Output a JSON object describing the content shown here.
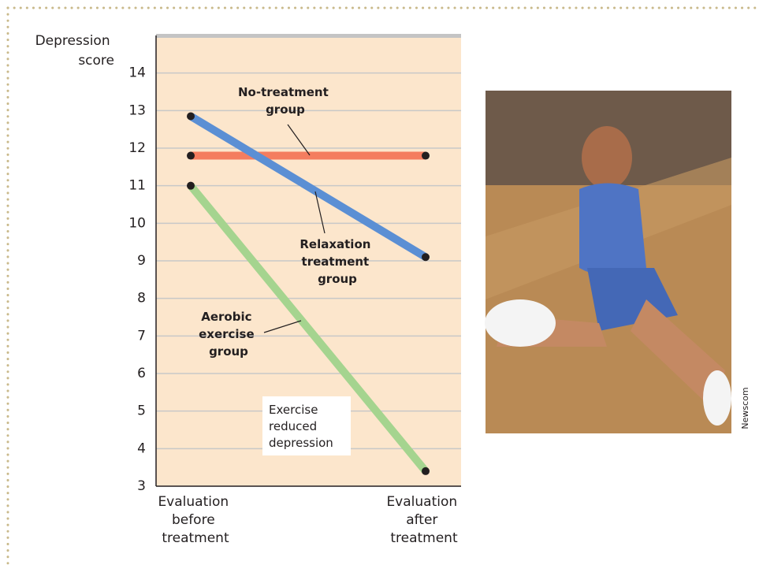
{
  "chart_data": {
    "type": "line",
    "y_label": "Depression score",
    "categories": [
      "Evaluation before treatment",
      "Evaluation after treatment"
    ],
    "series": [
      {
        "name": "No-treatment group",
        "color": "#f47d5f",
        "values": [
          11.8,
          11.8
        ]
      },
      {
        "name": "Relaxation treatment group",
        "color": "#5b8fd4",
        "values": [
          12.85,
          9.1
        ]
      },
      {
        "name": "Aerobic exercise group",
        "color": "#a5d48f",
        "values": [
          11.0,
          3.4
        ]
      }
    ],
    "annotations": [
      "Exercise reduced depression"
    ],
    "ylim": [
      3,
      15
    ],
    "yticks": [
      3,
      4,
      5,
      6,
      7,
      8,
      9,
      10,
      11,
      12,
      13,
      14
    ],
    "grid": true
  },
  "photo_credit": "Newscom"
}
